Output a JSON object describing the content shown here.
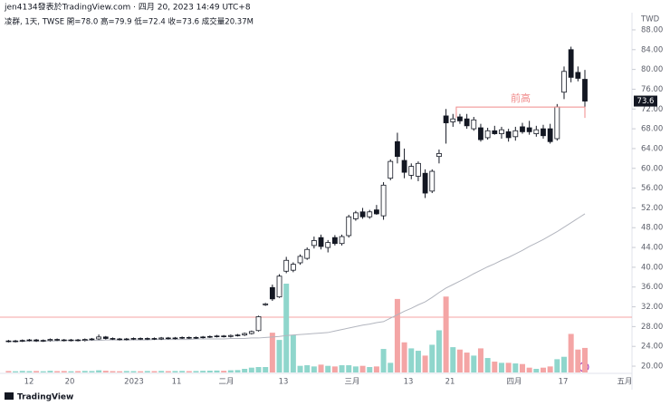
{
  "header": {
    "line1": "jen4134發表於TradingView.com · 四月 20, 2023 14:49 UTC+8",
    "line2": "凌群, 1天, TWSE  開=78.0 高=79.9 低=72.4 收=73.6 成交量20.37M"
  },
  "footer": {
    "logo": "TradingView"
  },
  "chart_data": {
    "type": "candlestick",
    "currency": "TWD",
    "xlabels": [
      "12",
      "20",
      "2023",
      "11",
      "二月",
      "13",
      "三月",
      "13",
      "21",
      "四月",
      "17",
      "五月"
    ],
    "open": [
      25.1,
      25.0,
      25.1,
      25.2,
      25.3,
      25.1,
      25.2,
      25.4,
      25.3,
      25.2,
      25.3,
      25.2,
      25.4,
      25.5,
      25.9,
      25.6,
      25.5,
      25.4,
      25.5,
      25.6,
      25.5,
      25.6,
      25.5,
      25.7,
      25.6,
      25.7,
      25.8,
      25.7,
      25.8,
      25.9,
      26.0,
      26.1,
      26.0,
      26.2,
      26.3,
      26.6,
      27.2,
      32.4,
      35.9,
      34.0,
      39.2,
      39.4,
      40.9,
      41.8,
      44.4,
      46.0,
      44.0,
      46.0,
      44.8,
      46.4,
      49.8,
      51.2,
      50.2,
      51.6,
      50.4,
      58.0,
      65.4,
      61.6,
      58.6,
      58.4,
      59.0,
      55.4,
      62.4,
      70.6,
      69.4,
      70.4,
      70.0,
      68.0,
      68.2,
      66.2,
      67.6,
      67.0,
      67.4,
      66.4,
      68.4,
      68.2,
      67.0,
      68.0,
      68.0,
      66.0,
      75.4,
      84.0,
      79.4,
      78.0
    ],
    "high": [
      25.3,
      25.3,
      25.4,
      25.5,
      25.5,
      25.4,
      25.6,
      25.6,
      25.5,
      25.5,
      25.5,
      25.6,
      25.7,
      26.4,
      26.1,
      25.8,
      25.7,
      25.7,
      25.8,
      25.8,
      25.8,
      25.8,
      25.9,
      25.9,
      25.9,
      26.0,
      26.0,
      26.0,
      26.1,
      26.2,
      26.3,
      26.3,
      26.4,
      26.5,
      26.8,
      27.2,
      30.2,
      32.8,
      36.5,
      38.6,
      42.1,
      41.0,
      42.6,
      44.0,
      46.2,
      46.6,
      45.5,
      46.5,
      46.6,
      50.6,
      51.4,
      52.0,
      51.6,
      52.6,
      57.2,
      61.8,
      67.2,
      64.0,
      61.0,
      61.4,
      59.8,
      59.8,
      63.8,
      72.0,
      71.0,
      71.0,
      71.0,
      70.4,
      69.0,
      68.2,
      68.6,
      68.4,
      68.0,
      68.4,
      69.2,
      69.6,
      68.6,
      68.8,
      69.0,
      73.0,
      80.6,
      84.6,
      80.6,
      79.9
    ],
    "low": [
      24.8,
      24.8,
      24.9,
      25.0,
      24.9,
      24.9,
      25.0,
      25.1,
      25.0,
      25.0,
      25.0,
      25.0,
      25.2,
      25.3,
      25.4,
      25.3,
      25.2,
      25.2,
      25.3,
      25.3,
      25.3,
      25.3,
      25.3,
      25.4,
      25.4,
      25.5,
      25.5,
      25.5,
      25.6,
      25.7,
      25.8,
      25.8,
      25.8,
      26.0,
      26.1,
      26.4,
      27.0,
      32.2,
      33.2,
      33.8,
      38.8,
      39.0,
      40.5,
      41.5,
      43.8,
      43.6,
      43.0,
      44.4,
      44.4,
      46.0,
      49.4,
      49.8,
      49.8,
      50.6,
      49.6,
      57.6,
      61.0,
      58.0,
      57.8,
      57.4,
      54.0,
      55.0,
      61.0,
      65.0,
      68.4,
      69.0,
      68.0,
      67.6,
      65.4,
      65.8,
      66.8,
      66.0,
      65.4,
      65.6,
      67.0,
      66.8,
      66.4,
      66.0,
      65.0,
      65.6,
      74.0,
      77.4,
      77.6,
      72.4
    ],
    "close": [
      25.0,
      25.1,
      25.2,
      25.3,
      25.1,
      25.2,
      25.4,
      25.3,
      25.2,
      25.3,
      25.2,
      25.4,
      25.5,
      25.9,
      25.6,
      25.5,
      25.4,
      25.5,
      25.6,
      25.5,
      25.6,
      25.5,
      25.7,
      25.6,
      25.7,
      25.8,
      25.7,
      25.8,
      25.9,
      26.0,
      26.1,
      26.0,
      26.2,
      26.3,
      26.6,
      27.0,
      30.0,
      32.6,
      33.6,
      38.2,
      41.4,
      40.6,
      42.2,
      43.6,
      45.4,
      44.2,
      45.0,
      44.8,
      46.2,
      50.2,
      51.0,
      50.2,
      51.2,
      50.8,
      56.6,
      61.4,
      62.4,
      59.2,
      60.4,
      61.0,
      55.0,
      59.4,
      63.0,
      69.2,
      70.0,
      69.6,
      68.6,
      69.8,
      65.8,
      67.6,
      67.0,
      67.8,
      66.2,
      67.6,
      67.4,
      67.4,
      67.8,
      66.6,
      65.4,
      72.4,
      79.6,
      78.4,
      78.2,
      73.6
    ],
    "volume": [
      1.2,
      1.0,
      1.3,
      1.1,
      1.2,
      1.0,
      1.4,
      1.1,
      1.2,
      1.0,
      1.1,
      1.3,
      1.2,
      1.8,
      1.4,
      1.1,
      1.0,
      1.2,
      1.1,
      1.0,
      1.2,
      1.1,
      1.3,
      1.1,
      1.2,
      1.3,
      1.1,
      1.2,
      1.4,
      1.5,
      1.6,
      1.4,
      1.8,
      2.0,
      3.0,
      4.0,
      4.5,
      4.5,
      33.0,
      27.0,
      73.7,
      31.0,
      5.5,
      6.0,
      5.0,
      6.5,
      5.5,
      5.0,
      6.0,
      6.0,
      5.0,
      5.5,
      4.5,
      5.0,
      19.5,
      8.0,
      61.0,
      25.0,
      20.0,
      18.0,
      14.0,
      23.0,
      35.0,
      63.0,
      21.0,
      19.0,
      16.5,
      14.0,
      20.0,
      12.0,
      9.0,
      8.0,
      8.0,
      7.5,
      7.0,
      4.0,
      3.0,
      4.0,
      5.0,
      11.0,
      13.0,
      32.0,
      19.0,
      20.37
    ],
    "ma": [
      25.0,
      25.0,
      25.0,
      25.1,
      25.1,
      25.1,
      25.1,
      25.1,
      25.2,
      25.2,
      25.2,
      25.2,
      25.2,
      25.2,
      25.3,
      25.3,
      25.3,
      25.3,
      25.3,
      25.3,
      25.3,
      25.4,
      25.4,
      25.4,
      25.4,
      25.4,
      25.4,
      25.5,
      25.5,
      25.5,
      25.5,
      25.5,
      25.6,
      25.6,
      25.6,
      25.7,
      25.7,
      25.8,
      25.9,
      26.0,
      26.2,
      26.3,
      26.4,
      26.5,
      26.6,
      26.7,
      26.8,
      27.1,
      27.4,
      27.7,
      28.0,
      28.3,
      28.5,
      28.8,
      29.0,
      29.7,
      30.4,
      31.1,
      31.7,
      32.4,
      33.0,
      33.9,
      34.9,
      35.8,
      36.5,
      37.2,
      37.9,
      38.7,
      39.4,
      40.1,
      40.7,
      41.4,
      42.0,
      42.7,
      43.4,
      44.2,
      44.9,
      45.6,
      46.4,
      47.2,
      48.1,
      49.0,
      49.9,
      50.8
    ],
    "ylim": [
      19,
      89
    ],
    "yticks": [
      {
        "value": 20,
        "label": "20.00"
      },
      {
        "value": 24,
        "label": "24.00"
      },
      {
        "value": 28,
        "label": "28.00"
      },
      {
        "value": 32,
        "label": "32.00"
      },
      {
        "value": 36,
        "label": "36.00"
      },
      {
        "value": 40,
        "label": "40.00"
      },
      {
        "value": 44,
        "label": "44.00"
      },
      {
        "value": 48,
        "label": "48.00"
      },
      {
        "value": 52,
        "label": "52.00"
      },
      {
        "value": 56,
        "label": "56.00"
      },
      {
        "value": 60,
        "label": "60.00"
      },
      {
        "value": 64,
        "label": "64.00"
      },
      {
        "value": 68,
        "label": "68.00"
      },
      {
        "value": 72,
        "label": "72.00"
      },
      {
        "value": 76,
        "label": "76.00"
      },
      {
        "value": 80,
        "label": "80.00"
      },
      {
        "value": 84,
        "label": "84.00"
      },
      {
        "value": 88,
        "label": "88.00"
      }
    ],
    "hline": 29.9,
    "annotation": {
      "text": "前高",
      "value": 72.4
    },
    "up_color": "#ffffff",
    "down_color": "#131722",
    "volume_up_color": "#8fd6cc",
    "volume_down_color": "#f4a5a5",
    "ma_color": "#b2b5be",
    "hline_color": "#f5a3a3",
    "annotation_color": "#f08a8a"
  }
}
